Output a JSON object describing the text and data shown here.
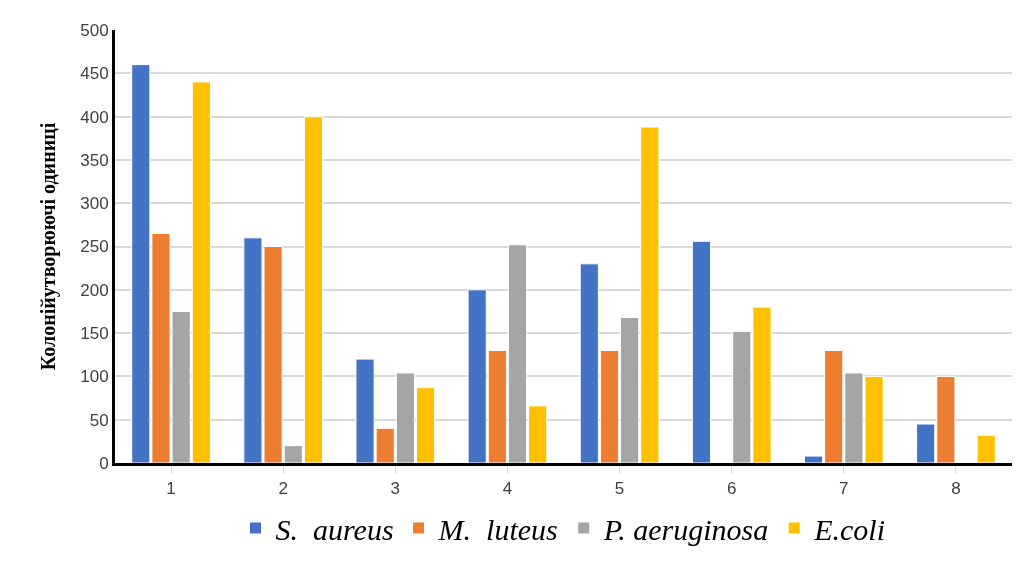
{
  "chart_data": {
    "type": "bar",
    "ylabel": "Колонійутворюючі одиниці",
    "categories": [
      "1",
      "2",
      "3",
      "4",
      "5",
      "6",
      "7",
      "8"
    ],
    "series": [
      {
        "name": "S.  aureus",
        "color": "#4472c4",
        "values": [
          460,
          260,
          120,
          200,
          230,
          256,
          8,
          45
        ]
      },
      {
        "name": "M.  luteus",
        "color": "#ed7d31",
        "values": [
          265,
          250,
          40,
          130,
          130,
          null,
          130,
          100
        ]
      },
      {
        "name": "P. aeruginosa",
        "color": "#a5a5a5",
        "values": [
          175,
          20,
          104,
          252,
          168,
          152,
          104,
          null
        ]
      },
      {
        "name": "E.coli",
        "color": "#ffc000",
        "values": [
          440,
          400,
          87,
          66,
          388,
          180,
          100,
          32
        ]
      }
    ],
    "ylim": [
      0,
      500
    ],
    "yticks": [
      0,
      50,
      100,
      150,
      200,
      250,
      300,
      350,
      400,
      450,
      500
    ],
    "grid": "y",
    "legend": "bottom"
  }
}
